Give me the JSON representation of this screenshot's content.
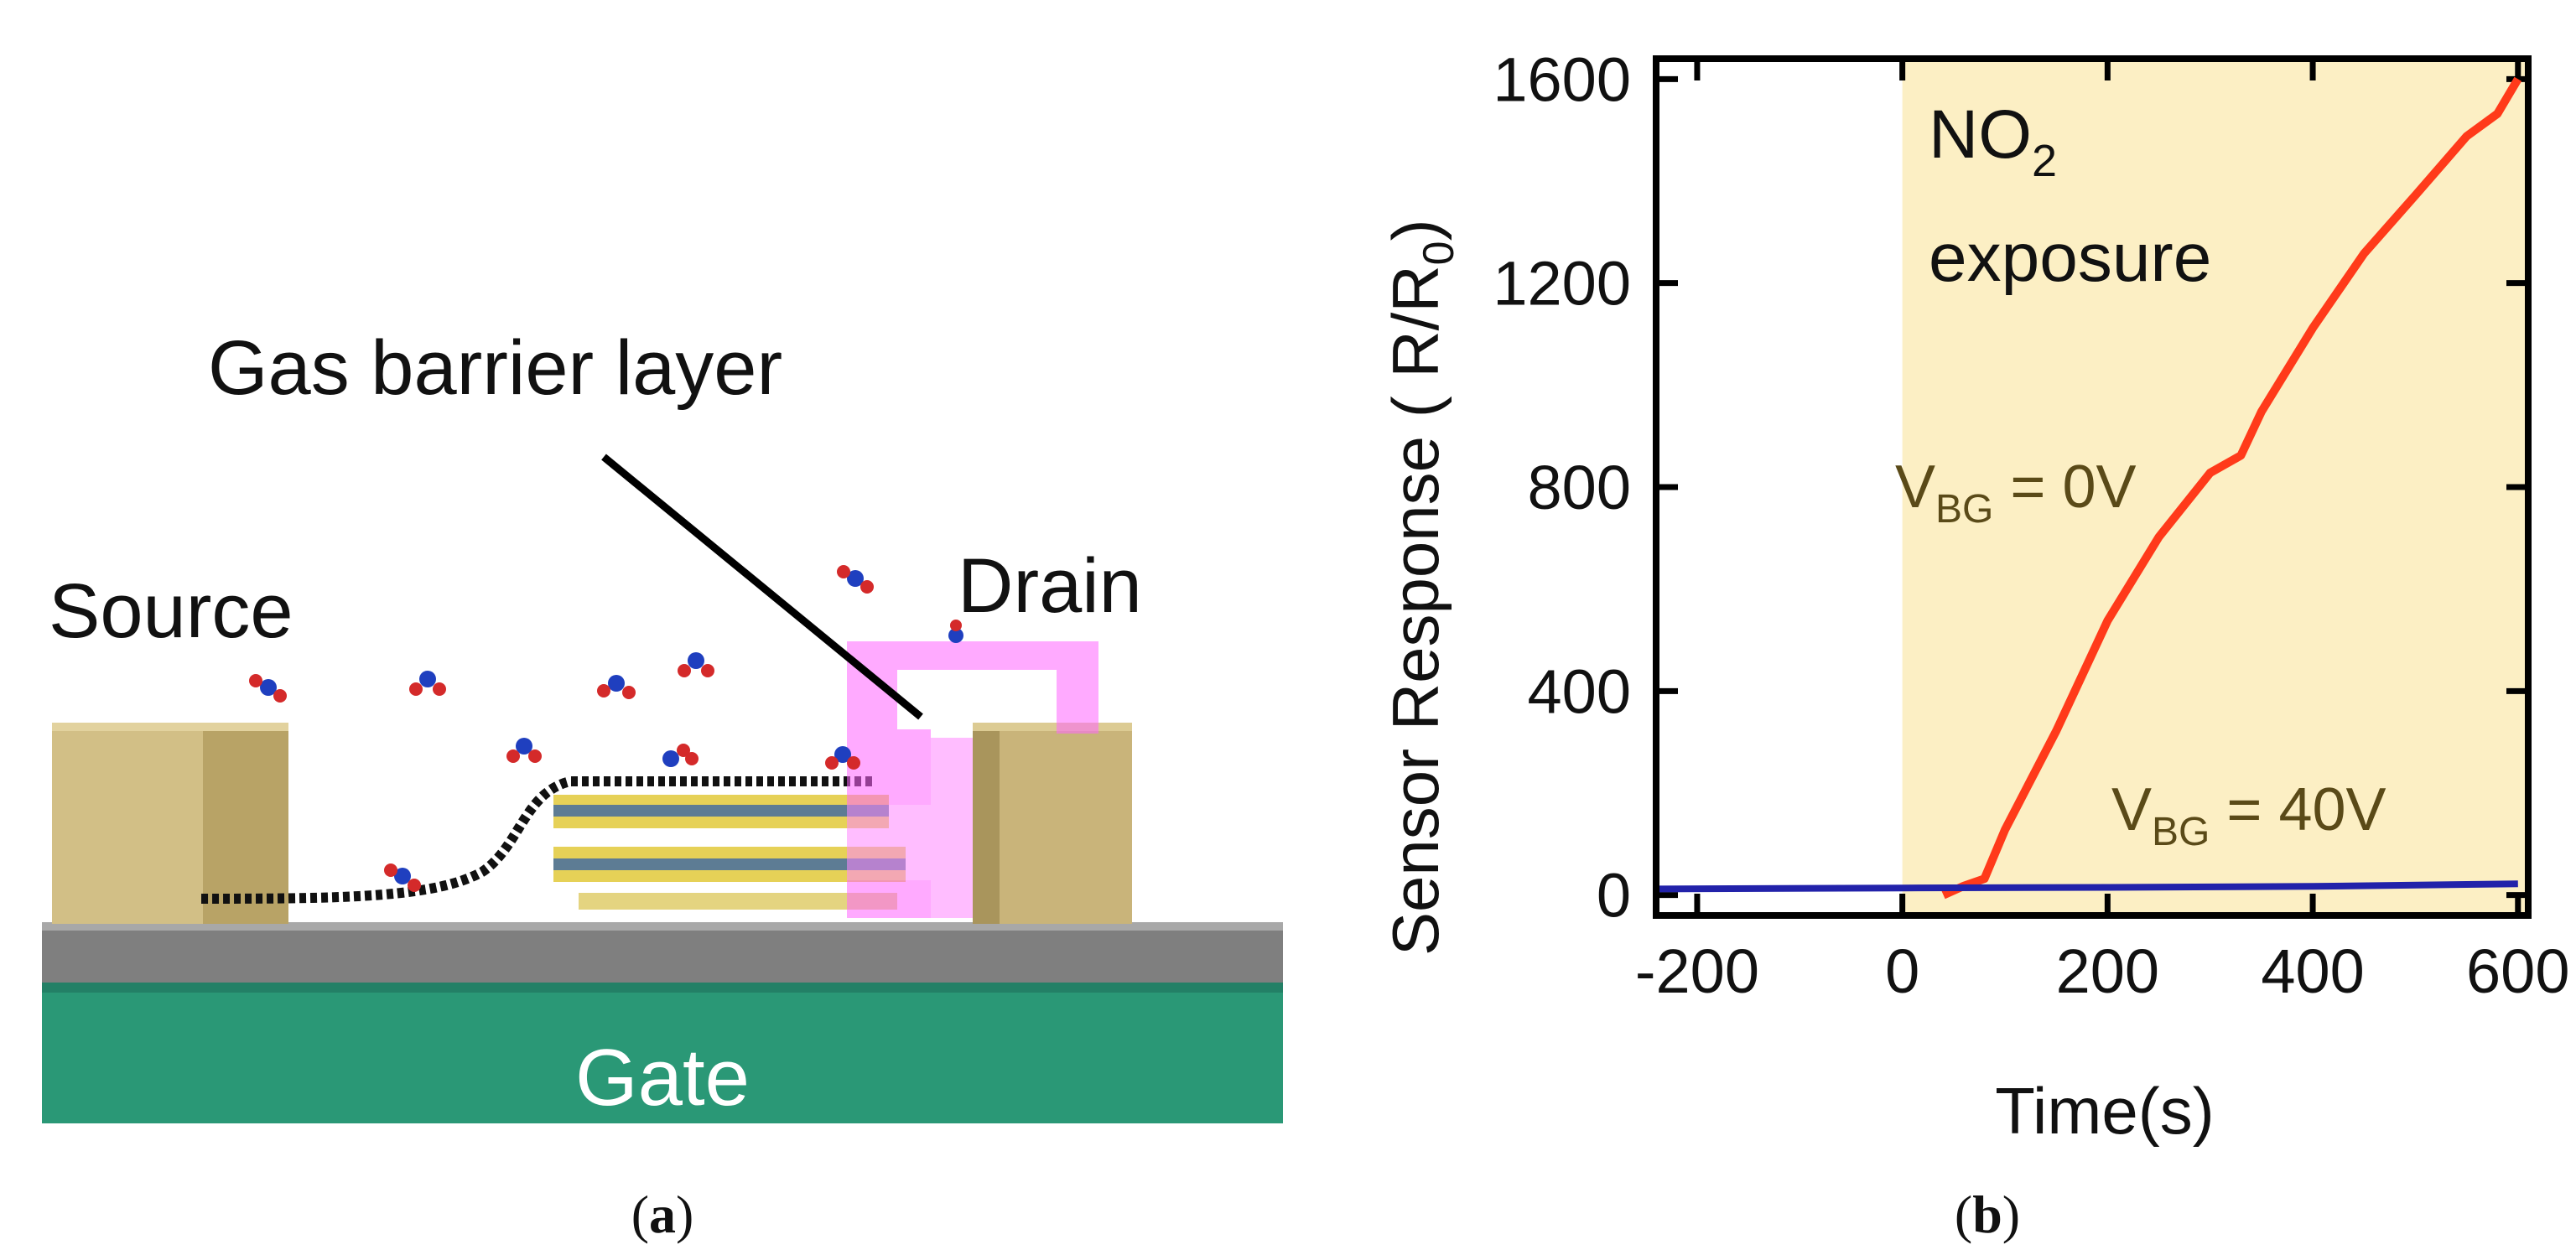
{
  "panel_a": {
    "caption": "a",
    "labels": {
      "source": "Source",
      "drain": "Drain",
      "gate": "Gate",
      "barrier": "Gas barrier layer"
    },
    "colors": {
      "electrode": "#c9b47a",
      "gate": "#2a9876",
      "oxide": "#7f7f7f",
      "barrier": "#ff66ff",
      "sheet": "#111111"
    }
  },
  "panel_b": {
    "caption": "b",
    "annotations": {
      "no2_main": "NO",
      "no2_sub": "2",
      "exposure": "exposure",
      "v0_main": "V",
      "v0_sub": "BG",
      "v0_value": " = 0V",
      "v40_main": "V",
      "v40_sub": "BG",
      "v40_value": " = 40V"
    }
  },
  "chart_data": {
    "type": "line",
    "title": "",
    "xlabel": "Time(s)",
    "ylabel_main": "Sensor Response (  R/R",
    "ylabel_sub": "0",
    "ylabel_close": ")",
    "xlim": [
      -240,
      610
    ],
    "ylim": [
      -40,
      1640
    ],
    "xticks": [
      -200,
      0,
      200,
      400,
      600
    ],
    "yticks": [
      0,
      400,
      800,
      1200,
      1600
    ],
    "exposure_region": {
      "x_start": 0,
      "x_end": 610,
      "color": "#fcefc4"
    },
    "series": [
      {
        "name": "V_BG = 0V",
        "color": "#ff3a1a",
        "x": [
          40,
          60,
          80,
          100,
          150,
          200,
          250,
          300,
          330,
          350,
          400,
          450,
          500,
          550,
          580,
          600
        ],
        "y": [
          0,
          10,
          40,
          120,
          330,
          530,
          710,
          820,
          870,
          940,
          1120,
          1250,
          1380,
          1480,
          1540,
          1600
        ]
      },
      {
        "name": "V_BG = 40V",
        "color": "#2222aa",
        "x": [
          -240,
          0,
          200,
          400,
          600
        ],
        "y": [
          12,
          14,
          15,
          17,
          22
        ]
      }
    ]
  }
}
